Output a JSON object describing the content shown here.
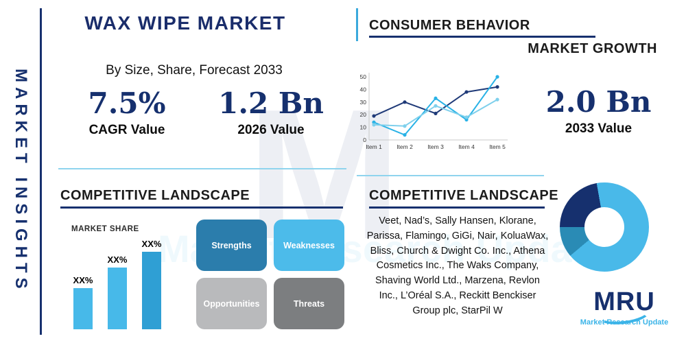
{
  "left_rail": {
    "title": "MARKET INSIGHTS"
  },
  "header": {
    "title": "WAX WIPE MARKET",
    "subtitle": "By Size, Share, Forecast 2033"
  },
  "stats": {
    "cagr_value": "7.5%",
    "cagr_label": "CAGR Value",
    "v2026_value": "1.2 Bn",
    "v2026_label": "2026 Value",
    "v2033_value": "2.0 Bn",
    "v2033_label": "2033 Value"
  },
  "sections": {
    "consumer_behavior": "CONSUMER BEHAVIOR",
    "market_growth": "MARKET GROWTH",
    "competitive_landscape_left": "COMPETITIVE LANDSCAPE",
    "competitive_landscape_right": "COMPETITIVE LANDSCAPE",
    "market_share_label": "MARKET SHARE"
  },
  "swot": {
    "strengths": {
      "label": "Strengths",
      "color": "#2b7dac"
    },
    "weaknesses": {
      "label": "Weaknesses",
      "color": "#4cbbea"
    },
    "opportunities": {
      "label": "Opportunities",
      "color": "#b9babc"
    },
    "threats": {
      "label": "Threats",
      "color": "#7c7e80"
    }
  },
  "companies": {
    "text": "Veet, Nad’s, Sally Hansen, Klorane, Parissa, Flamingo, GiGi, Nair, KoluaWax, Bliss, Church & Dwight Co. Inc., Athena Cosmetics Inc., The Waks Company, Shaving World Ltd., Marzena, Revlon Inc., L’Oréal S.A., Reckitt Benckiser Group plc, StarPil W"
  },
  "logo": {
    "name": "MRU",
    "caption": "Market Research Update"
  },
  "watermark": {
    "letter": "M",
    "text": "Market Research Update"
  },
  "colors": {
    "navy": "#16306e",
    "cyan": "#45b8e8",
    "teal": "#2a8bb5",
    "divider": "#8fd4ee",
    "gray_light": "#b9babc",
    "gray_dark": "#7c7e80"
  },
  "chart_data": [
    {
      "id": "consumer-line",
      "type": "line",
      "title": "CONSUMER BEHAVIOR",
      "categories": [
        "Item 1",
        "Item 2",
        "Item 3",
        "Item 4",
        "Item 5"
      ],
      "series": [
        {
          "name": "series-1",
          "color": "#1f3a78",
          "values": [
            19,
            30,
            21,
            38,
            42
          ]
        },
        {
          "name": "series-2",
          "color": "#29b2e6",
          "values": [
            14,
            4,
            33,
            16,
            50
          ]
        },
        {
          "name": "series-3",
          "color": "#7fd0ec",
          "values": [
            12,
            11,
            27,
            18,
            32
          ]
        }
      ],
      "ylim": [
        0,
        50
      ],
      "ytick_step": 10,
      "grid": false,
      "legend": "none"
    },
    {
      "id": "market-share-bar",
      "type": "bar",
      "title": "MARKET SHARE",
      "labels": [
        "XX%",
        "XX%",
        "XX%"
      ],
      "relative_heights": [
        51,
        77,
        100
      ],
      "colors": [
        "#47b9e9",
        "#47b9e9",
        "#2f9fd4"
      ]
    },
    {
      "id": "company-share-donut",
      "type": "pie",
      "segments": [
        {
          "name": "segment-cyan-main",
          "color": "#49b9e9",
          "deg": 230
        },
        {
          "name": "segment-teal",
          "color": "#2a8bb5",
          "deg": 40
        },
        {
          "name": "segment-navy",
          "color": "#16306e",
          "deg": 80
        },
        {
          "name": "segment-cyan-tail",
          "color": "#49b9e9",
          "deg": 10
        }
      ],
      "hole_ratio": 0.45
    }
  ]
}
